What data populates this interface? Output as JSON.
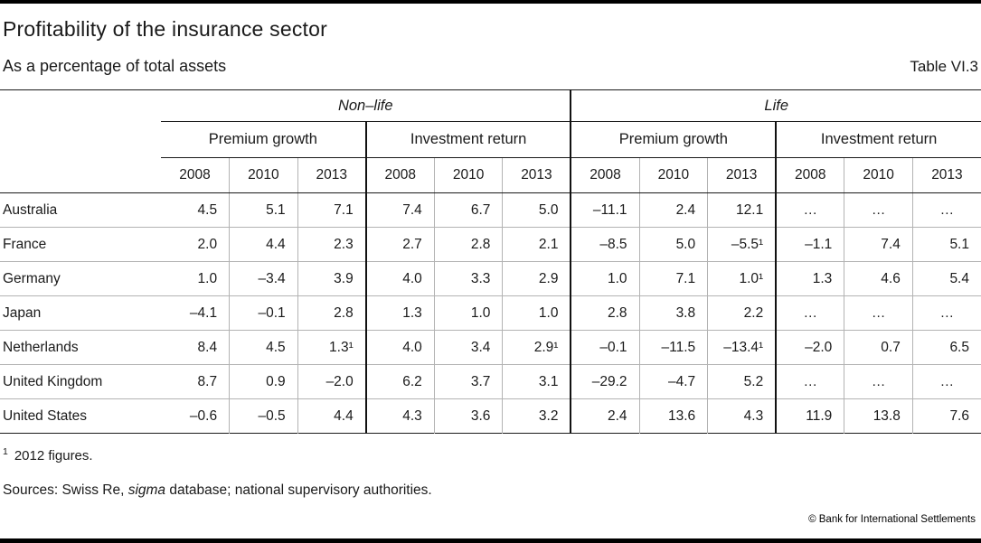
{
  "page": {
    "title": "Profitability of the insurance sector",
    "subtitle": "As a percentage of total assets",
    "table_label": "Table VI.3",
    "footnote_marker": "1",
    "footnote_text": "2012 figures.",
    "sources_prefix": "Sources: Swiss Re, ",
    "sources_italic": "sigma",
    "sources_suffix": " database; national supervisory authorities.",
    "copyright": "© Bank for International Settlements"
  },
  "table": {
    "group_headers": {
      "nonlife": "Non–life",
      "life": "Life"
    },
    "subgroup_headers": {
      "nonlife_premium": "Premium growth",
      "nonlife_investment": "Investment return",
      "life_premium": "Premium growth",
      "life_investment": "Investment return"
    },
    "year_headers": [
      "2008",
      "2010",
      "2013",
      "2008",
      "2010",
      "2013",
      "2008",
      "2010",
      "2013",
      "2008",
      "2010",
      "2013"
    ],
    "rows": [
      {
        "label": "Australia",
        "values": [
          "4.5",
          "5.1",
          "7.1",
          "7.4",
          "6.7",
          "5.0",
          "–11.1",
          "2.4",
          "12.1",
          "…",
          "…",
          "…"
        ]
      },
      {
        "label": "France",
        "values": [
          "2.0",
          "4.4",
          "2.3",
          "2.7",
          "2.8",
          "2.1",
          "–8.5",
          "5.0",
          "–5.5¹",
          "–1.1",
          "7.4",
          "5.1"
        ]
      },
      {
        "label": "Germany",
        "values": [
          "1.0",
          "–3.4",
          "3.9",
          "4.0",
          "3.3",
          "2.9",
          "1.0",
          "7.1",
          "1.0¹",
          "1.3",
          "4.6",
          "5.4"
        ]
      },
      {
        "label": "Japan",
        "values": [
          "–4.1",
          "–0.1",
          "2.8",
          "1.3",
          "1.0",
          "1.0",
          "2.8",
          "3.8",
          "2.2",
          "…",
          "…",
          "…"
        ]
      },
      {
        "label": "Netherlands",
        "values": [
          "8.4",
          "4.5",
          "1.3¹",
          "4.0",
          "3.4",
          "2.9¹",
          "–0.1",
          "–11.5",
          "–13.4¹",
          "–2.0",
          "0.7",
          "6.5"
        ]
      },
      {
        "label": "United Kingdom",
        "values": [
          "8.7",
          "0.9",
          "–2.0",
          "6.2",
          "3.7",
          "3.1",
          "–29.2",
          "–4.7",
          "5.2",
          "…",
          "…",
          "…"
        ]
      },
      {
        "label": "United States",
        "values": [
          "–0.6",
          "–0.5",
          "4.4",
          "4.3",
          "3.6",
          "3.2",
          "2.4",
          "13.6",
          "4.3",
          "11.9",
          "13.8",
          "7.6"
        ]
      }
    ]
  },
  "colors": {
    "text": "#1a1a1a",
    "grid_light": "#b3b3b3",
    "grid_dark": "#111111",
    "rule_bar": "#000000"
  }
}
